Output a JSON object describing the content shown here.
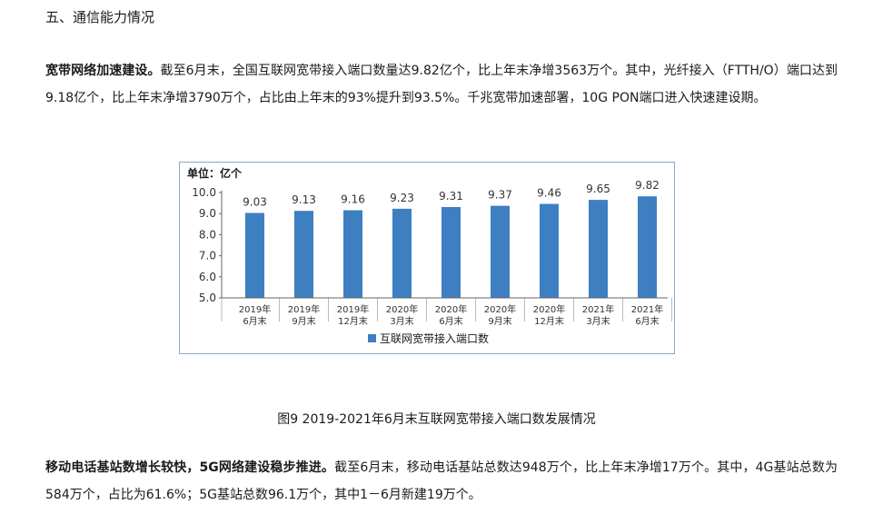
{
  "section_heading": "五、通信能力情况",
  "paragraph1": {
    "lead": "宽带网络加速建设。",
    "body": "截至6月末，全国互联网宽带接入端口数量达9.82亿个，比上年末净增3563万个。其中，光纤接入（FTTH/O）端口达到9.18亿个，比上年末净增3790万个，占比由上年末的93%提升到93.5%。千兆宽带加速部署，10G PON端口进入快速建设期。"
  },
  "chart_data": {
    "type": "bar",
    "unit_label": "单位：亿个",
    "categories": [
      [
        "2019年",
        "6月末"
      ],
      [
        "2019年",
        "9月末"
      ],
      [
        "2019年",
        "12月末"
      ],
      [
        "2020年",
        "3月末"
      ],
      [
        "2020年",
        "6月末"
      ],
      [
        "2020年",
        "9月末"
      ],
      [
        "2020年",
        "12月末"
      ],
      [
        "2021年",
        "3月末"
      ],
      [
        "2021年",
        "6月末"
      ]
    ],
    "series": [
      {
        "name": "互联网宽带接入端口数",
        "values": [
          9.03,
          9.13,
          9.16,
          9.23,
          9.31,
          9.37,
          9.46,
          9.65,
          9.82
        ]
      }
    ],
    "value_labels": [
      "9.03",
      "9.13",
      "9.16",
      "9.23",
      "9.31",
      "9.37",
      "9.46",
      "9.65",
      "9.82"
    ],
    "yticks": [
      "10.0",
      "9.0",
      "8.0",
      "7.0",
      "6.0",
      "5.0"
    ],
    "ylim": [
      5.0,
      10.0
    ],
    "bar_color": "#3d7fc1",
    "grid": false,
    "legend_position": "bottom"
  },
  "caption": "图9   2019-2021年6月末互联网宽带接入端口数发展情况",
  "paragraph2": {
    "lead": "移动电话基站数增长较快，5G网络建设稳步推进。",
    "body": "截至6月末，移动电话基站总数达948万个，比上年末净增17万个。其中，4G基站总数为584万个，占比为61.6%；5G基站总数96.1万个，其中1－6月新建19万个。"
  }
}
